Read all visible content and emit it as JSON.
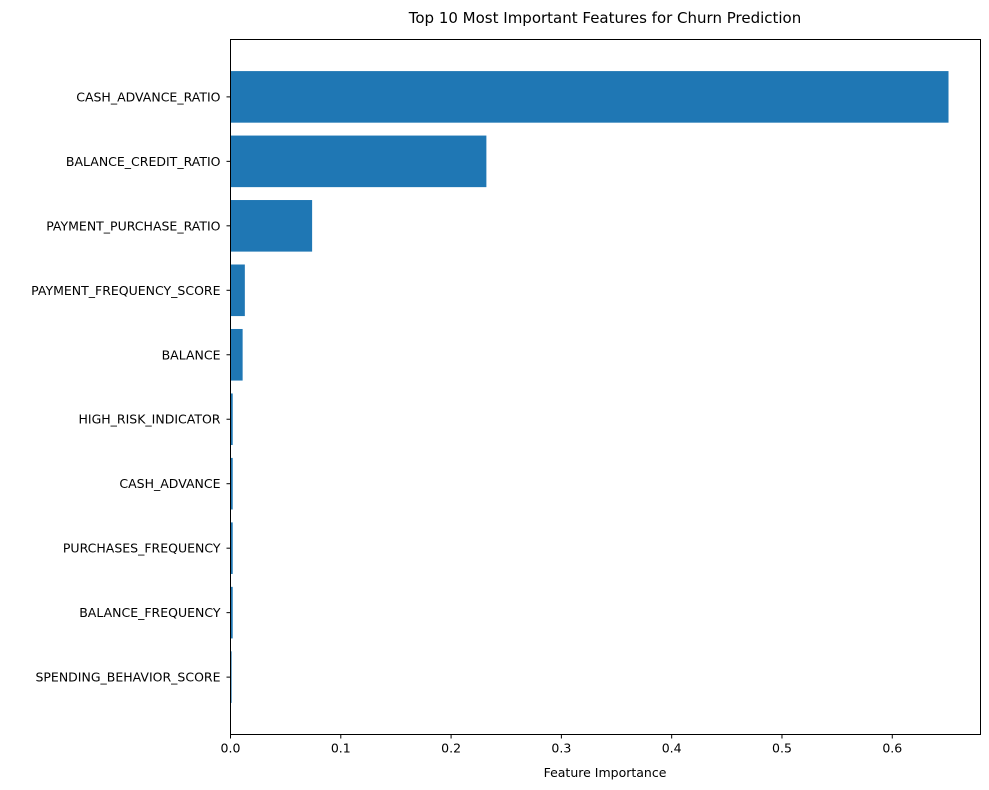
{
  "chart_data": {
    "type": "bar",
    "orientation": "horizontal",
    "title": "Top 10 Most Important Features for Churn Prediction",
    "xlabel": "Feature Importance",
    "ylabel": "",
    "xlim": [
      0,
      0.68
    ],
    "xticks": [
      0.0,
      0.1,
      0.2,
      0.3,
      0.4,
      0.5,
      0.6
    ],
    "xtick_labels": [
      "0.0",
      "0.1",
      "0.2",
      "0.3",
      "0.4",
      "0.5",
      "0.6"
    ],
    "grid": false,
    "bar_color": "#1f77b4",
    "categories": [
      "CASH_ADVANCE_RATIO",
      "BALANCE_CREDIT_RATIO",
      "PAYMENT_PURCHASE_RATIO",
      "PAYMENT_FREQUENCY_SCORE",
      "BALANCE",
      "HIGH_RISK_INDICATOR",
      "CASH_ADVANCE",
      "PURCHASES_FREQUENCY",
      "BALANCE_FREQUENCY",
      "SPENDING_BEHAVIOR_SCORE"
    ],
    "values": [
      0.651,
      0.232,
      0.074,
      0.013,
      0.011,
      0.002,
      0.002,
      0.002,
      0.002,
      0.001
    ]
  }
}
